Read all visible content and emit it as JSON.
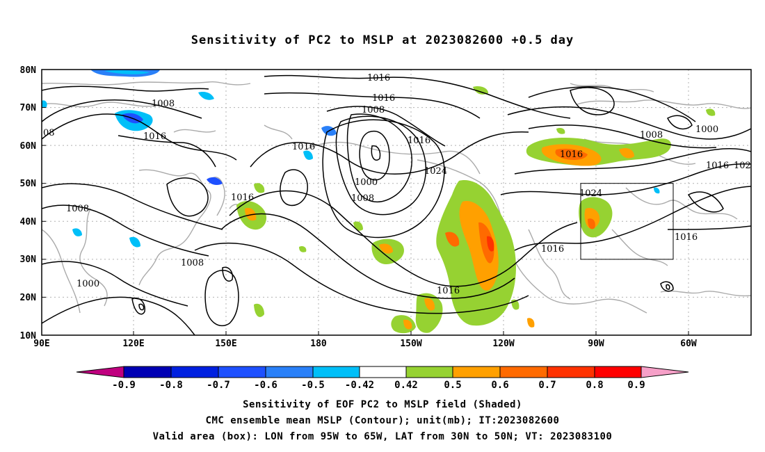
{
  "title": "Sensitivity of PC2 to MSLP at 2023082600 +0.5 day",
  "lat_ticks": [
    "80N",
    "70N",
    "60N",
    "50N",
    "40N",
    "30N",
    "20N",
    "10N"
  ],
  "lon_ticks": [
    "90E",
    "120E",
    "150E",
    "180",
    "150W",
    "120W",
    "90W",
    "60W"
  ],
  "contour_labels": [
    "1016",
    "1016",
    "1008",
    "1008",
    "1016",
    "1016",
    "1016",
    "1000",
    "1008",
    "1024",
    "1016",
    "1008",
    "1000",
    "1016",
    "102",
    "08",
    "1008",
    "1016",
    "1008",
    "1000",
    "1024",
    "1016",
    "1016",
    "1016"
  ],
  "colorbar": {
    "colors": [
      "#c0007f",
      "#0000b4",
      "#0020e0",
      "#1e50ff",
      "#2a80f8",
      "#00bff8",
      "#ffffff",
      "#96d232",
      "#ffa000",
      "#ff6a00",
      "#ff3200",
      "#ff0000",
      "#f6a0c8"
    ],
    "labels": [
      "-0.9",
      "-0.8",
      "-0.7",
      "-0.6",
      "-0.5",
      "-0.42",
      "0.42",
      "0.5",
      "0.6",
      "0.7",
      "0.8",
      "0.9"
    ]
  },
  "valid_box": {
    "lon_from": "95W",
    "lon_to": "65W",
    "lat_from": "30N",
    "lat_to": "50N"
  },
  "captions": [
    "Sensitivity of EOF PC2 to MSLP field (Shaded)",
    "CMC ensemble mean MSLP (Contour); unit(mb); IT:2023082600",
    "Valid area (box): LON from 95W to 65W, LAT from 30N to 50N; VT: 2023083100"
  ]
}
